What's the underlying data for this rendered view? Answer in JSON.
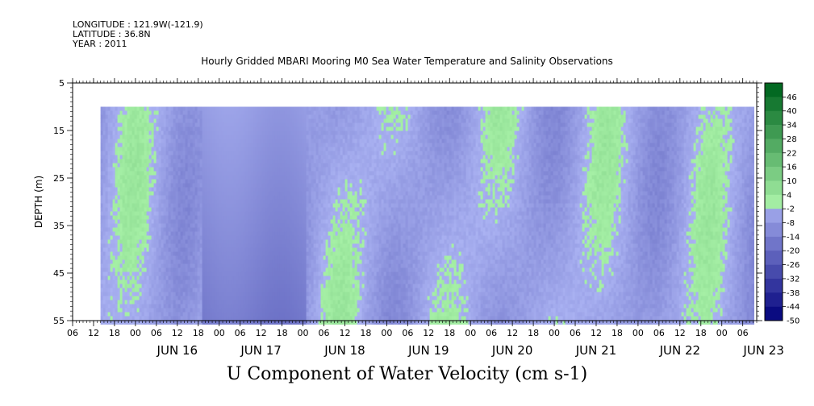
{
  "header": {
    "longitude": "LONGITUDE : 121.9W(-121.9)",
    "latitude": "LATITUDE : 36.8N",
    "year": "YEAR : 2011"
  },
  "chart_data": {
    "type": "heatmap",
    "title": "Hourly Gridded MBARI Mooring M0 Sea Water Temperature and Salinity Observations",
    "xlabel": "U Component of Water Velocity (cm s-1)",
    "ylabel": "DEPTH (m)",
    "x_range": [
      "2011-06-15T06:00",
      "2011-06-23T10:00"
    ],
    "data_start": "2011-06-15T14:00",
    "y_range": [
      55,
      5
    ],
    "y_ticks": [
      "5",
      "15",
      "25",
      "35",
      "45",
      "55"
    ],
    "y_tick_values": [
      5,
      15,
      25,
      35,
      45,
      55
    ],
    "data_top_depth": 10,
    "hour_ticks": [
      "06",
      "12",
      "18",
      "00",
      "06",
      "12",
      "18",
      "00",
      "06",
      "12",
      "18",
      "00",
      "06",
      "12",
      "18",
      "00",
      "06",
      "12",
      "18",
      "00",
      "06",
      "12",
      "18",
      "00",
      "06",
      "12",
      "18",
      "00",
      "06",
      "12",
      "18",
      "00",
      "06"
    ],
    "day_labels": [
      "JUN 16",
      "JUN 17",
      "JUN 18",
      "JUN 19",
      "JUN 20",
      "JUN 21",
      "JUN 22",
      "JUN 23"
    ],
    "colorbar": {
      "min": -50,
      "max": 50,
      "labels": [
        "46",
        "40",
        "34",
        "28",
        "22",
        "16",
        "10",
        "4",
        "-2",
        "-8",
        "-14",
        "-20",
        "-26",
        "-32",
        "-38",
        "-44",
        "-50"
      ]
    },
    "colors": {
      "positive_light": "#a6f0a6",
      "positive_dark": "#00661f",
      "negative_light": "#aab2f2",
      "negative_dark": "#00007a",
      "background": "#ffffff"
    }
  }
}
